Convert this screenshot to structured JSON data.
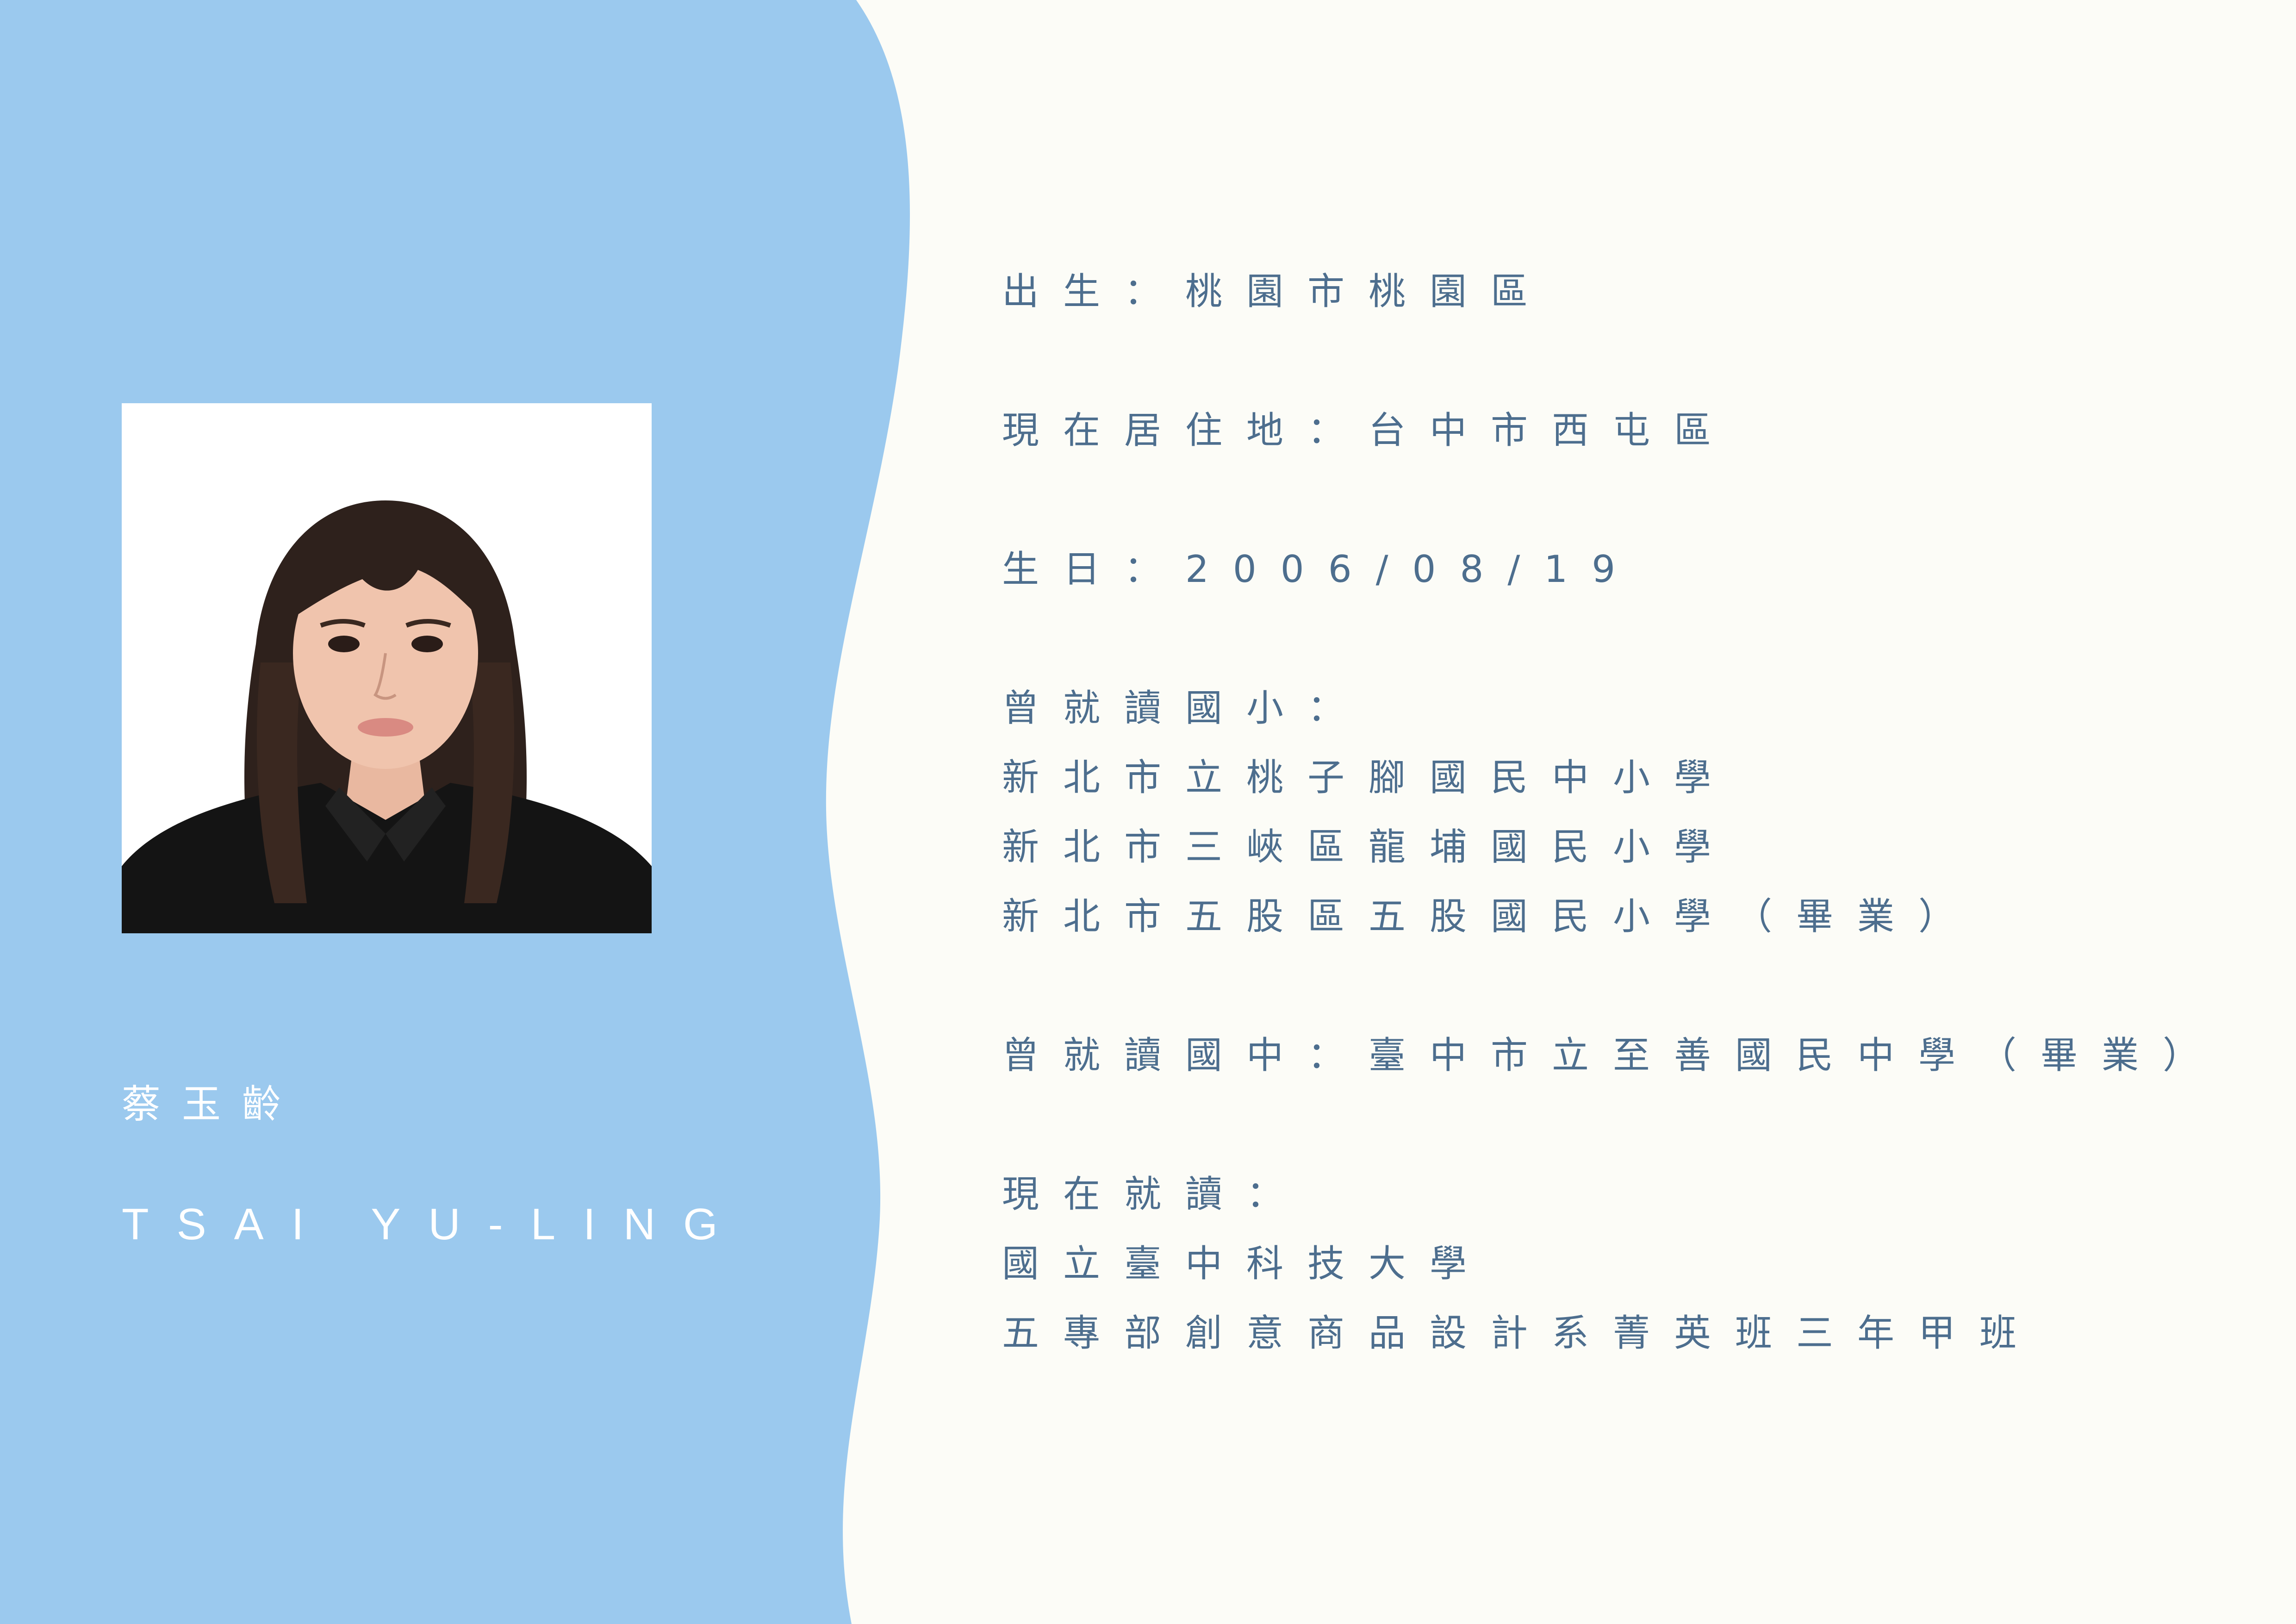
{
  "colors": {
    "panel_blue": "#9bc9ee",
    "page_bg": "#fcfcf7",
    "text_blue": "#4d6e8e",
    "name_text": "#ffffff"
  },
  "profile": {
    "photo_icon": "portrait-photo",
    "name_cn": "蔡玉齡",
    "name_en": "TSAI YU-LING"
  },
  "info": {
    "birthplace": "出生：桃園市桃園區",
    "residence": "現在居住地：台中市西屯區",
    "birthday": "生日：2006/08/19",
    "elementary_heading": "曾就讀國小：",
    "elementary_schools": [
      "新北市立桃子腳國民中小學",
      "新北市三峽區龍埔國民小學",
      "新北市五股區五股國民小學（畢業）"
    ],
    "junior_high": "曾就讀國中：臺中市立至善國民中學（畢業）",
    "current_heading": "現在就讀：",
    "current_school": "國立臺中科技大學",
    "current_program": "五專部創意商品設計系菁英班三年甲班"
  }
}
